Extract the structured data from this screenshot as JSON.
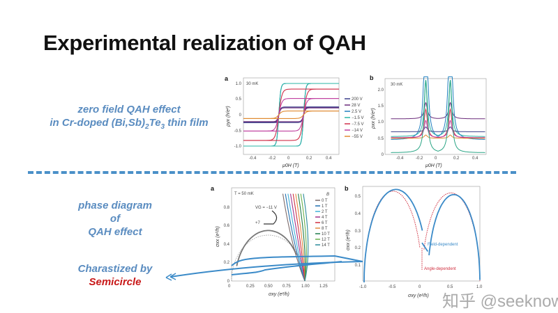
{
  "slide": {
    "title": "Experimental realization of QAH",
    "notes": {
      "zero_field_line1": "zero field QAH effect",
      "zero_field_line2_pre": "in Cr-doped (Bi,Sb)",
      "zero_field_sub1": "2",
      "zero_field_mid": "Te",
      "zero_field_sub2": "3",
      "zero_field_post": " thin film",
      "phase_line1": "phase diagram",
      "phase_line2": "of",
      "phase_line3": "QAH effect",
      "char_line1": "Charastized by",
      "char_line2": "Semicircle"
    },
    "watermark": "知乎 @seeknow",
    "colors": {
      "note_text": "#5a8cc0",
      "highlight": "#c81818",
      "divider": "#4a90c8"
    }
  },
  "figures": {
    "top_a": {
      "panel": "a",
      "temperature": "30 mK",
      "ylabel": "ρyx (h/e²)",
      "xlabel": "μ0H (T)",
      "xticks": [
        "-0.4",
        "-0.2",
        "0",
        "0.2",
        "0.4"
      ],
      "yticks": [
        "1.0",
        "0.5",
        "0",
        "-0.5",
        "-1.0"
      ],
      "legend": [
        {
          "label": "200 V",
          "color": "#3a3f8a",
          "level": 0.25
        },
        {
          "label": "28 V",
          "color": "#6a2a7a",
          "level": 0.22
        },
        {
          "label": "2.5 V",
          "color": "#1f7fbf",
          "level": 1.0
        },
        {
          "label": "−1.5 V",
          "color": "#2ab5a5",
          "level": 1.0
        },
        {
          "label": "−7.5 V",
          "color": "#d0304a",
          "level": 0.82
        },
        {
          "label": "−14 V",
          "color": "#c040a0",
          "level": 0.52
        },
        {
          "label": "−55 V",
          "color": "#e08a30",
          "level": 0.12
        }
      ]
    },
    "top_b": {
      "panel": "b",
      "temperature": "30 mK",
      "ylabel": "ρxx (h/e²)",
      "xlabel": "μ0H (T)",
      "xticks": [
        "-0.4",
        "-0.2",
        "0",
        "0.2",
        "0.4"
      ],
      "yticks": [
        "2.0",
        "1.5",
        "1.0",
        "0.5",
        "0"
      ]
    },
    "bottom_a": {
      "panel": "a",
      "temperature": "T = 50 mK",
      "ylabel": "σxx (e²/h)",
      "xlabel": "σxy (e²/h)",
      "annotation1": "VG = −11 V",
      "annotation2": "+7",
      "legend_title": "B",
      "legend": [
        {
          "label": "0 T",
          "color": "#7a6a6a"
        },
        {
          "label": "1 T",
          "color": "#1f6fb0"
        },
        {
          "label": "2 T",
          "color": "#3fb0d8"
        },
        {
          "label": "4 T",
          "color": "#a0308a"
        },
        {
          "label": "6 T",
          "color": "#d03040"
        },
        {
          "label": "8 T",
          "color": "#e08a40"
        },
        {
          "label": "10 T",
          "color": "#1f7a4a"
        },
        {
          "label": "12 T",
          "color": "#6ab04a"
        },
        {
          "label": "14 T",
          "color": "#2a8a9a"
        }
      ],
      "xticks": [
        "0",
        "0.25",
        "0.50",
        "0.75",
        "1.00",
        "1.25"
      ],
      "yticks": [
        "0.8",
        "0.6",
        "0.4",
        "0.2",
        "0"
      ]
    },
    "bottom_b": {
      "panel": "b",
      "ylabel": "σxx (e²/h)",
      "xlabel": "σxy (e²/h)",
      "xticks": [
        "-1.0",
        "-0.5",
        "0",
        "0.5",
        "1.0"
      ],
      "yticks": [
        "0.5",
        "0.4",
        "0.3",
        "0.2",
        "0.1"
      ],
      "series": [
        {
          "label": "Field-dependent",
          "color": "#3a8ac8"
        },
        {
          "label": "Angle-dependent",
          "color": "#d03040"
        }
      ]
    }
  }
}
